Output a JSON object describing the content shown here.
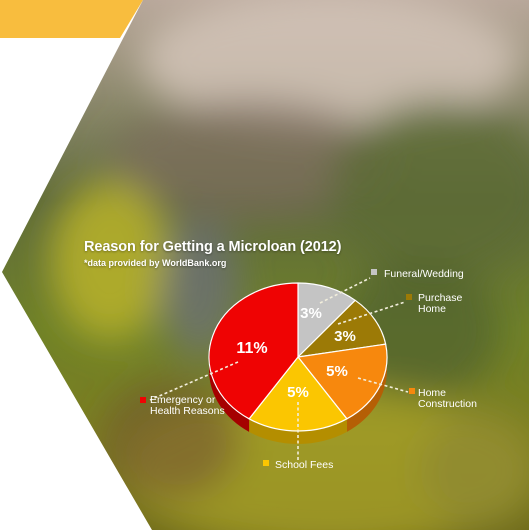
{
  "colors": {
    "yellow_band": "#F8BD3E",
    "panel_white": "#FFFFFF",
    "leader_line": "#F2EEDC"
  },
  "chart_data": {
    "type": "pie",
    "title": "Reason for Getting a Microloan (2012)",
    "subtitle": "*data provided by WorldBank.org",
    "slices": [
      {
        "label": "Funeral/Wedding",
        "value": 3,
        "display": "3%",
        "color": "#C4C4C4",
        "side": "#8F8F8F"
      },
      {
        "label": "Purchase Home",
        "value": 3,
        "display": "3%",
        "color": "#9C7A06",
        "side": "#6B5304"
      },
      {
        "label": "Home Construction",
        "value": 5,
        "display": "5%",
        "color": "#F7880D",
        "side": "#B55F05"
      },
      {
        "label": "School Fees",
        "value": 5,
        "display": "5%",
        "color": "#FBC601",
        "side": "#B48E00"
      },
      {
        "label": "Emergency or Health Reasons",
        "value": 11,
        "display": "11%",
        "color": "#EF0303",
        "side": "#A50000"
      }
    ],
    "legend_placement": "around-chart"
  },
  "labels": [
    {
      "name": "label-funeral-wedding",
      "lines": [
        "Funeral/Wedding"
      ]
    },
    {
      "name": "label-purchase-home",
      "lines": [
        "Purchase",
        "Home"
      ]
    },
    {
      "name": "label-home-construction",
      "lines": [
        "Home",
        "Construction"
      ]
    },
    {
      "name": "label-school-fees",
      "lines": [
        "School Fees"
      ]
    },
    {
      "name": "label-emergency-health",
      "lines": [
        "Emergency or",
        "Health Reasons"
      ]
    }
  ]
}
